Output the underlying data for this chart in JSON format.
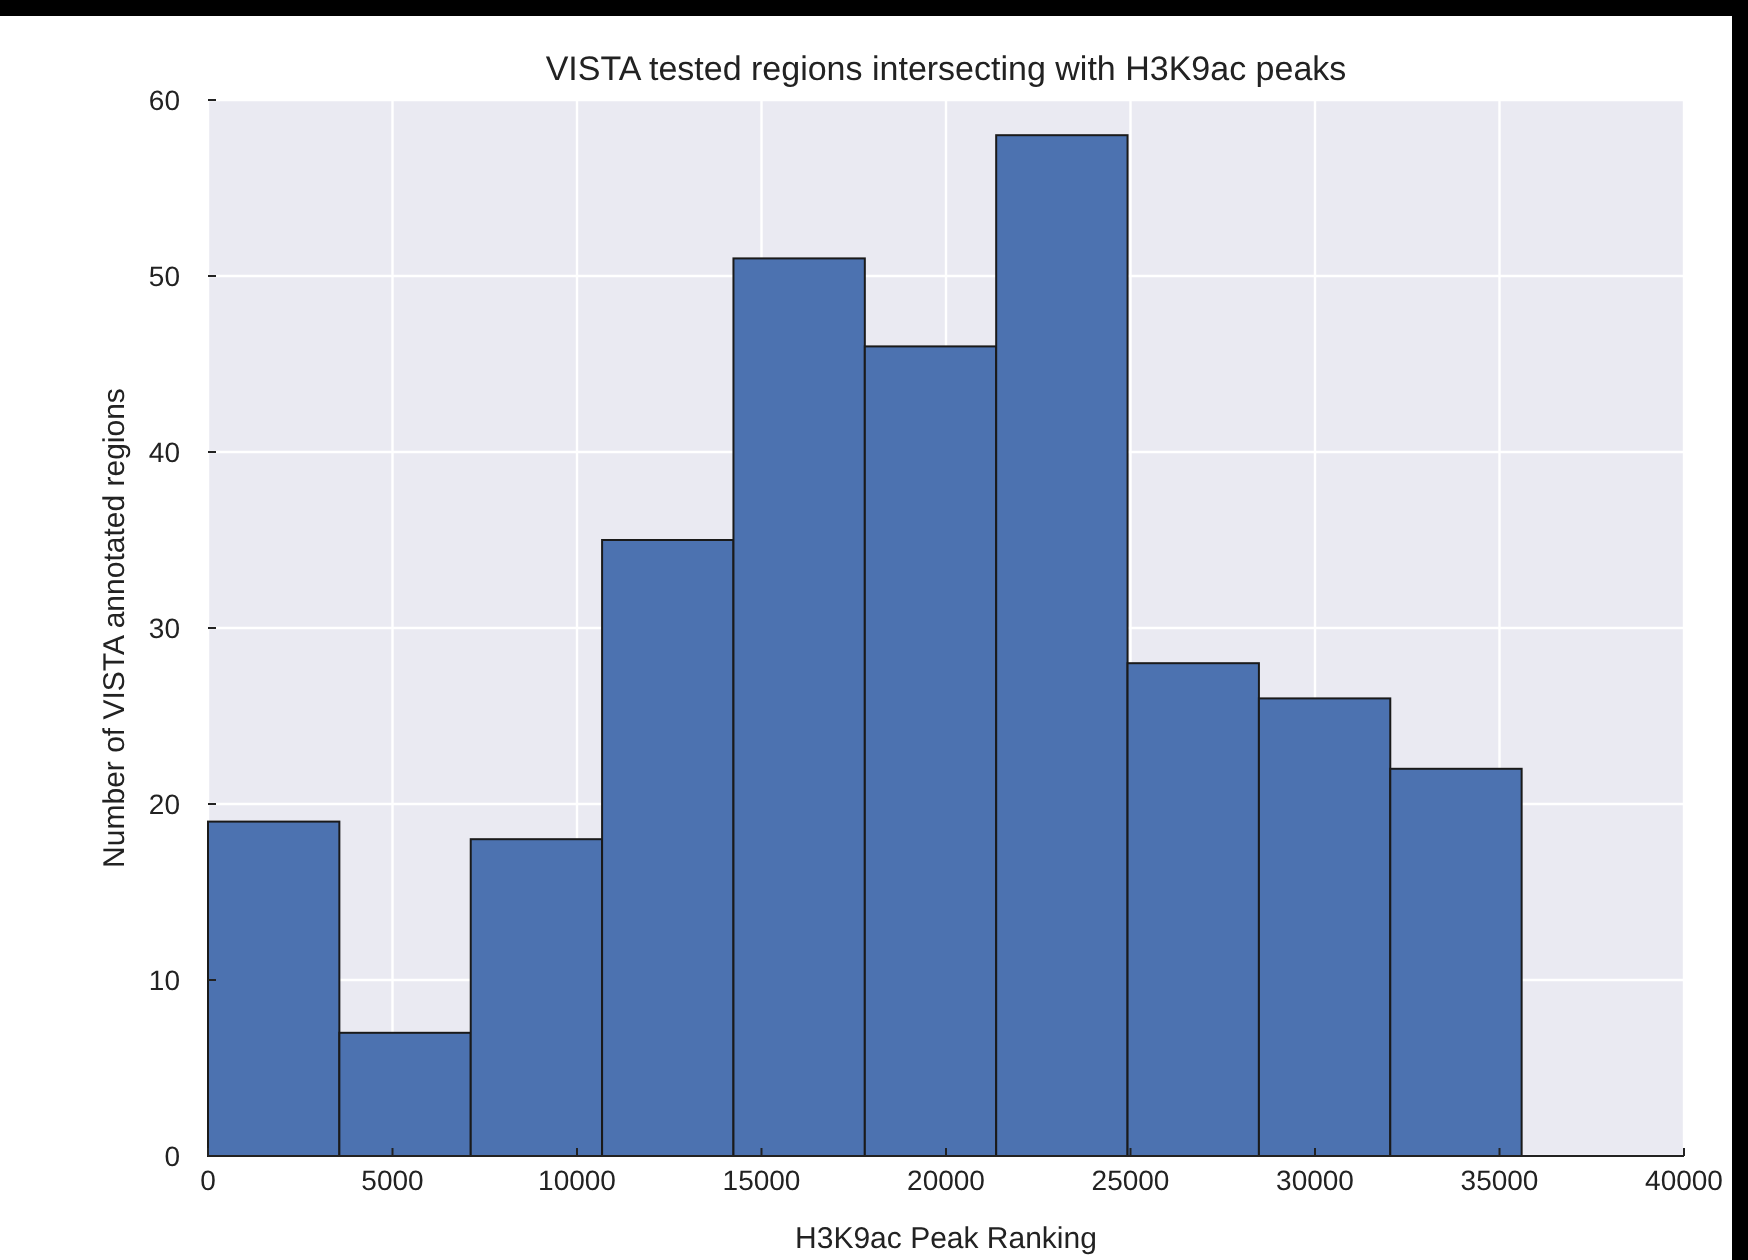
{
  "chart_data": {
    "type": "histogram",
    "title": "VISTA tested regions intersecting with H3K9ac peaks",
    "xlabel": "H3K9ac Peak Ranking",
    "ylabel": "Number of VISTA annotated regions",
    "bins": [
      0,
      3560,
      7120,
      10680,
      14240,
      17800,
      21360,
      24920,
      28480,
      32040,
      35600
    ],
    "values": [
      19,
      7,
      18,
      35,
      51,
      46,
      58,
      28,
      26,
      22
    ],
    "color": "#4c72b0",
    "xlim": [
      0,
      40000
    ],
    "xticks": [
      0,
      5000,
      10000,
      15000,
      20000,
      25000,
      30000,
      35000,
      40000
    ],
    "ylim": [
      0,
      60
    ],
    "yticks": [
      0,
      10,
      20,
      30,
      40,
      50,
      60
    ],
    "grid": true
  }
}
